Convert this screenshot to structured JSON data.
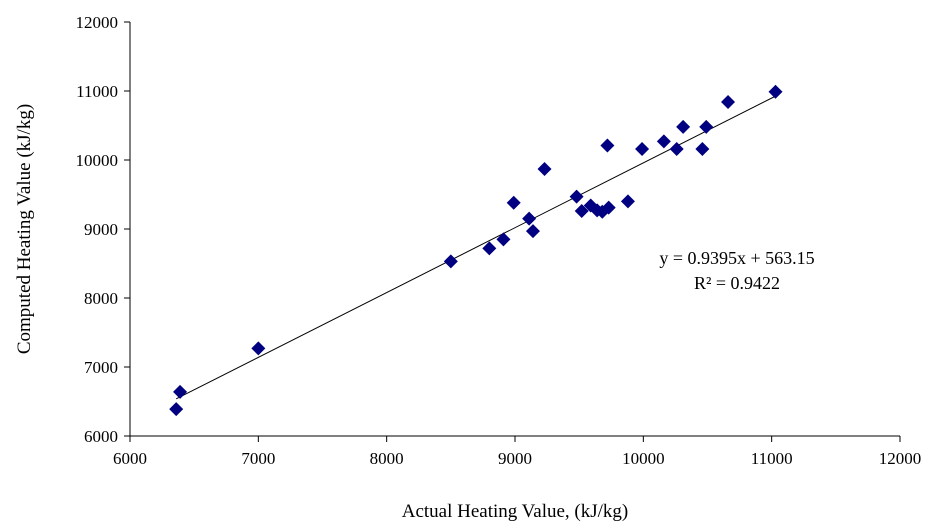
{
  "chart_data": {
    "type": "scatter",
    "xlabel": "Actual Heating Value, (kJ/kg)",
    "ylabel": "Computed Heating Value (kJ/kg)",
    "xlim": [
      6000,
      12000
    ],
    "ylim": [
      6000,
      12000
    ],
    "xticks": [
      6000,
      7000,
      8000,
      9000,
      10000,
      11000,
      12000
    ],
    "yticks": [
      6000,
      7000,
      8000,
      9000,
      10000,
      11000,
      12000
    ],
    "grid": false,
    "marker": "diamond",
    "marker_color": "#000080",
    "points": [
      {
        "x": 6360,
        "y": 6390
      },
      {
        "x": 6390,
        "y": 6640
      },
      {
        "x": 7000,
        "y": 7270
      },
      {
        "x": 8500,
        "y": 8530
      },
      {
        "x": 8800,
        "y": 8720
      },
      {
        "x": 8910,
        "y": 8850
      },
      {
        "x": 8990,
        "y": 9380
      },
      {
        "x": 9110,
        "y": 9150
      },
      {
        "x": 9140,
        "y": 8970
      },
      {
        "x": 9230,
        "y": 9870
      },
      {
        "x": 9480,
        "y": 9470
      },
      {
        "x": 9520,
        "y": 9260
      },
      {
        "x": 9590,
        "y": 9340
      },
      {
        "x": 9640,
        "y": 9270
      },
      {
        "x": 9680,
        "y": 9250
      },
      {
        "x": 9730,
        "y": 9310
      },
      {
        "x": 9880,
        "y": 9400
      },
      {
        "x": 9720,
        "y": 10210
      },
      {
        "x": 9990,
        "y": 10160
      },
      {
        "x": 10160,
        "y": 10270
      },
      {
        "x": 10260,
        "y": 10160
      },
      {
        "x": 10310,
        "y": 10480
      },
      {
        "x": 10460,
        "y": 10160
      },
      {
        "x": 10490,
        "y": 10480
      },
      {
        "x": 10660,
        "y": 10840
      },
      {
        "x": 11030,
        "y": 10990
      }
    ],
    "trendline": {
      "type": "linear",
      "slope": 0.9395,
      "intercept": 563.15,
      "x_range": [
        6360,
        11030
      ],
      "color": "#000000",
      "equation_label": "y = 0.9395x + 563.15",
      "r2_label": "R² = 0.9422"
    }
  }
}
